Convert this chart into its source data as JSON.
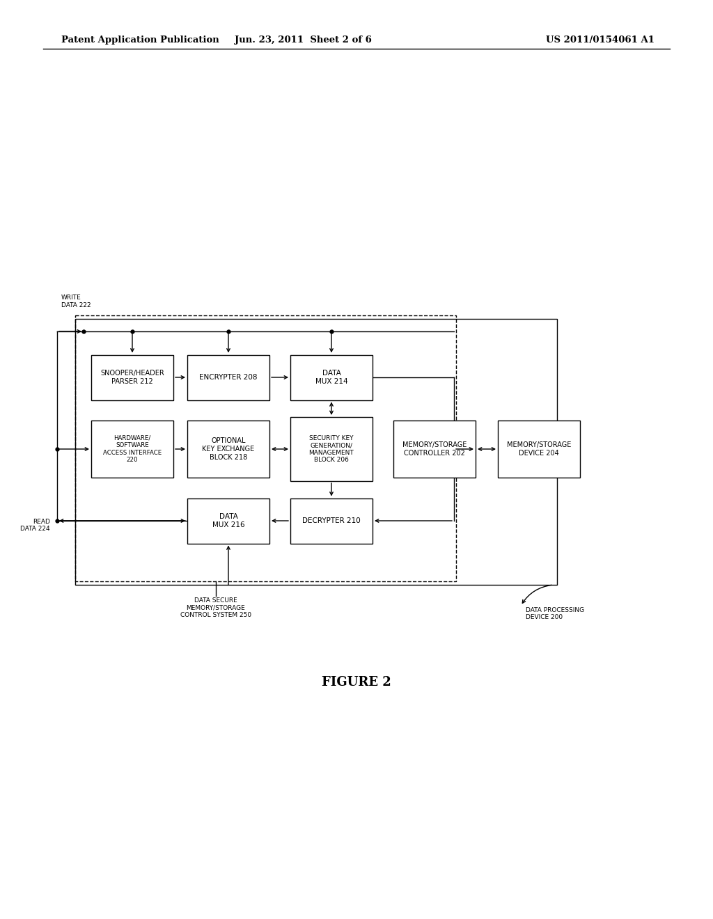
{
  "title_left": "Patent Application Publication",
  "title_center": "Jun. 23, 2011  Sheet 2 of 6",
  "title_right": "US 2011/0154061 A1",
  "figure_label": "FIGURE 2",
  "background_color": "#ffffff"
}
